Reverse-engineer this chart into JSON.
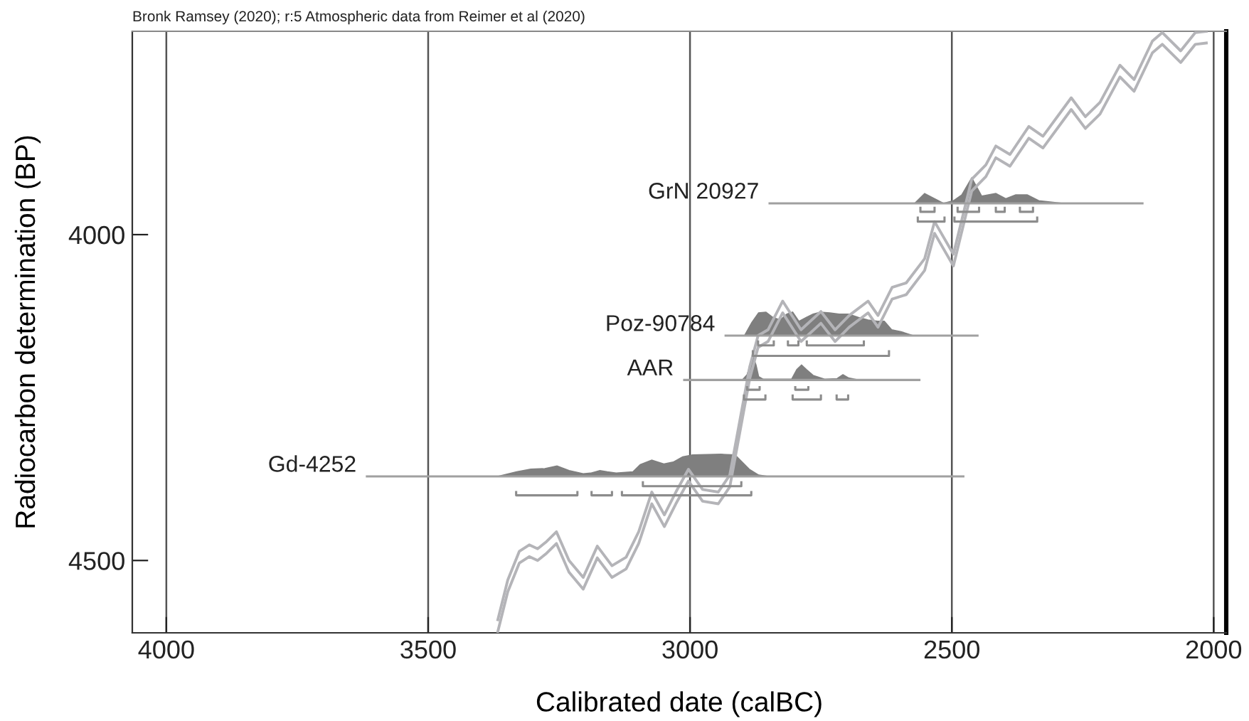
{
  "chart_data": {
    "type": "line",
    "xlabel": "Calibrated date (calBC)",
    "ylabel": "Radiocarbon determination (BP)",
    "annotations": [
      "Bronk Ramsey (2020); r:5 Atmospheric data from Reimer et al (2020)"
    ],
    "xlim": [
      4065,
      1976
    ],
    "xticks": [
      4000,
      3500,
      3000,
      2500,
      2000
    ],
    "ylim": [
      4611,
      3688
    ],
    "yticks": [
      4000,
      4500
    ],
    "grid": "x",
    "legend": false,
    "series": [
      {
        "color": "#b4b4b8",
        "x": [
          3367,
          3348,
          3326,
          3307,
          3291,
          3274,
          3255,
          3231,
          3204,
          3177,
          3149,
          3122,
          3098,
          3073,
          3049,
          3027,
          3003,
          2976,
          2946,
          2924,
          2905,
          2886,
          2870,
          2851,
          2823,
          2788,
          2750,
          2723,
          2696,
          2660,
          2641,
          2614,
          2587,
          2552,
          2533,
          2497,
          2462,
          2435,
          2416,
          2389,
          2353,
          2326,
          2272,
          2245,
          2217,
          2179,
          2152,
          2117,
          2098,
          2063,
          2035,
          2014
        ],
        "values": [
          4591,
          4530,
          4486,
          4476,
          4482,
          4471,
          4456,
          4500,
          4526,
          4478,
          4508,
          4495,
          4456,
          4395,
          4430,
          4395,
          4360,
          4391,
          4395,
          4369,
          4286,
          4203,
          4155,
          4146,
          4102,
          4146,
          4118,
          4146,
          4124,
          4102,
          4124,
          4081,
          4074,
          4037,
          3980,
          4030,
          3915,
          3893,
          3864,
          3877,
          3834,
          3849,
          3790,
          3819,
          3797,
          3740,
          3762,
          3703,
          3690,
          3718,
          3690,
          3688
        ]
      },
      {
        "color": "#b4b4b8",
        "x": [
          3367,
          3348,
          3326,
          3307,
          3291,
          3274,
          3255,
          3231,
          3204,
          3177,
          3149,
          3122,
          3098,
          3073,
          3049,
          3027,
          3003,
          2976,
          2946,
          2924,
          2905,
          2886,
          2870,
          2851,
          2823,
          2788,
          2750,
          2723,
          2696,
          2660,
          2641,
          2614,
          2587,
          2552,
          2533,
          2497,
          2462,
          2435,
          2416,
          2389,
          2353,
          2326,
          2272,
          2245,
          2217,
          2179,
          2152,
          2117,
          2098,
          2063,
          2035,
          2014
        ],
        "values": [
          4609,
          4548,
          4504,
          4494,
          4500,
          4489,
          4474,
          4518,
          4544,
          4496,
          4526,
          4513,
          4474,
          4413,
          4448,
          4413,
          4378,
          4409,
          4413,
          4387,
          4304,
          4221,
          4173,
          4164,
          4120,
          4164,
          4136,
          4164,
          4142,
          4120,
          4142,
          4099,
          4092,
          4055,
          3998,
          4048,
          3933,
          3911,
          3882,
          3895,
          3852,
          3867,
          3808,
          3837,
          3815,
          3758,
          3780,
          3721,
          3708,
          3736,
          3708,
          3706
        ]
      },
      {
        "name": "GrN 20927",
        "color": "#a0a0a0",
        "x": [
          2848,
          2136
        ],
        "values": [
          3952,
          3952
        ]
      },
      {
        "type": "area",
        "color": "#7f7f7f",
        "x": [
          2571,
          2552,
          2533,
          2516,
          2497,
          2481,
          2462,
          2443,
          2416,
          2397,
          2378,
          2356,
          2334,
          2288
        ],
        "values": [
          3952,
          3937,
          3945,
          3952,
          3948,
          3939,
          3913,
          3941,
          3937,
          3945,
          3939,
          3939,
          3948,
          3952
        ]
      },
      {
        "color": "#8c8c8c",
        "x": [
          2560,
          2560,
          2533,
          2533,
          null,
          2489,
          2489,
          2448,
          2448,
          null,
          2416,
          2416,
          2399,
          2399,
          null,
          2370,
          2370,
          2345,
          2345,
          null,
          2565,
          2565,
          2514,
          2514,
          null,
          2495,
          2495,
          2337,
          2337
        ],
        "values": [
          3959,
          3965,
          3965,
          3959,
          null,
          3959,
          3965,
          3965,
          3959,
          null,
          3959,
          3965,
          3965,
          3959,
          null,
          3959,
          3965,
          3965,
          3959,
          null,
          3974,
          3980,
          3980,
          3974,
          null,
          3974,
          3980,
          3980,
          3974
        ]
      },
      {
        "name": "Poz-90784",
        "color": "#a0a0a0",
        "x": [
          2932,
          2451
        ],
        "values": [
          4155,
          4155
        ]
      },
      {
        "type": "area",
        "color": "#7f7f7f",
        "x": [
          2896,
          2882,
          2869,
          2855,
          2842,
          2828,
          2815,
          2804,
          2792,
          2778,
          2765,
          2751,
          2733,
          2715,
          2697,
          2679,
          2660,
          2642,
          2629,
          2615,
          2597,
          2574,
          2570
        ],
        "values": [
          4155,
          4135,
          4120,
          4119,
          4127,
          4131,
          4122,
          4119,
          4133,
          4127,
          4122,
          4119,
          4120,
          4122,
          4122,
          4127,
          4131,
          4133,
          4133,
          4146,
          4149,
          4155,
          4155
        ]
      },
      {
        "color": "#8c8c8c",
        "x": [
          2870,
          2870,
          2840,
          2840,
          null,
          2813,
          2813,
          2793,
          2793,
          null,
          2777,
          2777,
          2668,
          2668,
          null,
          2880,
          2880,
          2620,
          2620
        ],
        "values": [
          4164,
          4170,
          4170,
          4164,
          null,
          4164,
          4170,
          4170,
          4164,
          null,
          4164,
          4170,
          4170,
          4164,
          null,
          4179,
          4186,
          4186,
          4179
        ]
      },
      {
        "name": "AAR",
        "color": "#a0a0a0",
        "x": [
          3011,
          2562
        ],
        "values": [
          4223,
          4223
        ]
      },
      {
        "type": "area",
        "color": "#7f7f7f",
        "x": [
          2900,
          2891,
          2885,
          2880,
          2874,
          2869,
          2860,
          2806,
          2796,
          2787,
          2778,
          2765,
          2742,
          2719,
          2708,
          2697,
          2679
        ],
        "values": [
          4223,
          4215,
          4200,
          4186,
          4200,
          4218,
          4222,
          4222,
          4207,
          4200,
          4207,
          4216,
          4222,
          4221,
          4215,
          4220,
          4223
        ]
      },
      {
        "color": "#8c8c8c",
        "x": [
          2891,
          2891,
          2867,
          2867,
          null,
          2799,
          2799,
          2774,
          2774,
          null,
          2897,
          2897,
          2856,
          2856,
          null,
          2804,
          2804,
          2750,
          2750,
          null,
          2720,
          2720,
          2698,
          2698
        ],
        "values": [
          4234,
          4238,
          4238,
          4234,
          null,
          4234,
          4238,
          4238,
          4234,
          null,
          4247,
          4253,
          4253,
          4247,
          null,
          4247,
          4253,
          4253,
          4247,
          null,
          4247,
          4253,
          4253,
          4247
        ]
      },
      {
        "name": "Gd-4252",
        "color": "#a0a0a0",
        "x": [
          3617,
          2478
        ],
        "values": [
          4371,
          4371
        ]
      },
      {
        "type": "area",
        "color": "#7f7f7f",
        "x": [
          3367,
          3331,
          3304,
          3277,
          3254,
          3231,
          3204,
          3190,
          3172,
          3158,
          3141,
          3109,
          3095,
          3073,
          3050,
          3032,
          3014,
          2995,
          2941,
          2914,
          2887,
          2869,
          2851
        ],
        "values": [
          4371,
          4364,
          4360,
          4359,
          4355,
          4362,
          4367,
          4366,
          4362,
          4364,
          4366,
          4364,
          4353,
          4346,
          4352,
          4349,
          4341,
          4338,
          4337,
          4338,
          4360,
          4369,
          4371
        ]
      },
      {
        "color": "#8c8c8c",
        "x": [
          3090,
          3090,
          2902,
          2902,
          null,
          3332,
          3332,
          3215,
          3215,
          null,
          3188,
          3188,
          3149,
          3149,
          null,
          3130,
          3130,
          2883,
          2883
        ],
        "values": [
          4380,
          4386,
          4386,
          4380,
          null,
          4395,
          4400,
          4400,
          4395,
          null,
          4395,
          4400,
          4400,
          4395,
          null,
          4395,
          4400,
          4400,
          4395
        ]
      }
    ]
  }
}
